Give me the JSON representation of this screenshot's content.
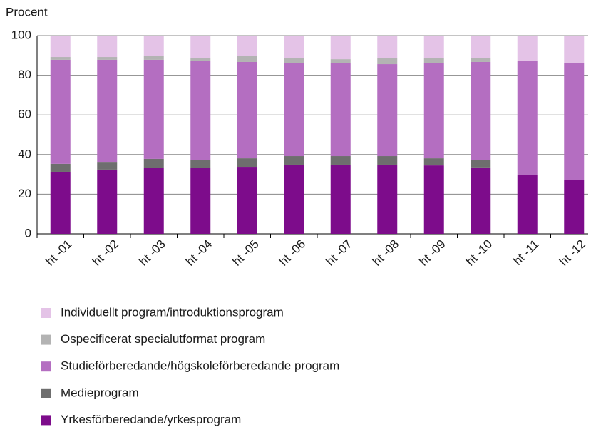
{
  "chart_data": {
    "type": "stacked_bar",
    "y_axis_label": "Procent",
    "categories": [
      "ht -01",
      "ht -02",
      "ht -03",
      "ht -04",
      "ht -05",
      "ht -06",
      "ht -07",
      "ht -08",
      "ht -09",
      "ht -10",
      "ht -11",
      "ht -12"
    ],
    "series": [
      {
        "name": "Yrkesförberedande/yrkesprogram",
        "color": "#7d0c8b",
        "values": [
          31.3,
          32.4,
          33.1,
          33.1,
          33.8,
          34.9,
          34.9,
          34.9,
          34.5,
          33.5,
          29.5,
          27.3
        ]
      },
      {
        "name": "Medieprogram",
        "color": "#6e6e6e",
        "values": [
          4.0,
          3.9,
          4.7,
          4.3,
          4.3,
          4.3,
          4.3,
          4.3,
          3.6,
          3.6,
          0,
          0
        ]
      },
      {
        "name": "Studieförberedande/högskoleförberedande program",
        "color": "#b46ec1",
        "values": [
          52.5,
          51.5,
          50.0,
          49.7,
          48.6,
          46.8,
          46.8,
          46.4,
          47.9,
          49.6,
          57.6,
          58.7
        ]
      },
      {
        "name": "Ospecificerat specialutformat program",
        "color": "#b3b3b3",
        "values": [
          1.4,
          1.4,
          1.8,
          1.7,
          2.9,
          2.8,
          2.1,
          2.9,
          2.5,
          1.8,
          0,
          0
        ]
      },
      {
        "name": "Individuellt program/introduktionsprogram",
        "color": "#e4c3e7",
        "values": [
          10.8,
          10.8,
          10.4,
          11.2,
          10.4,
          11.2,
          11.9,
          11.5,
          11.5,
          11.5,
          12.9,
          14.0
        ]
      }
    ],
    "ylim": [
      0,
      100
    ],
    "yticks": [
      0,
      20,
      40,
      60,
      80,
      100
    ],
    "grid": true,
    "legend": "bottom"
  }
}
